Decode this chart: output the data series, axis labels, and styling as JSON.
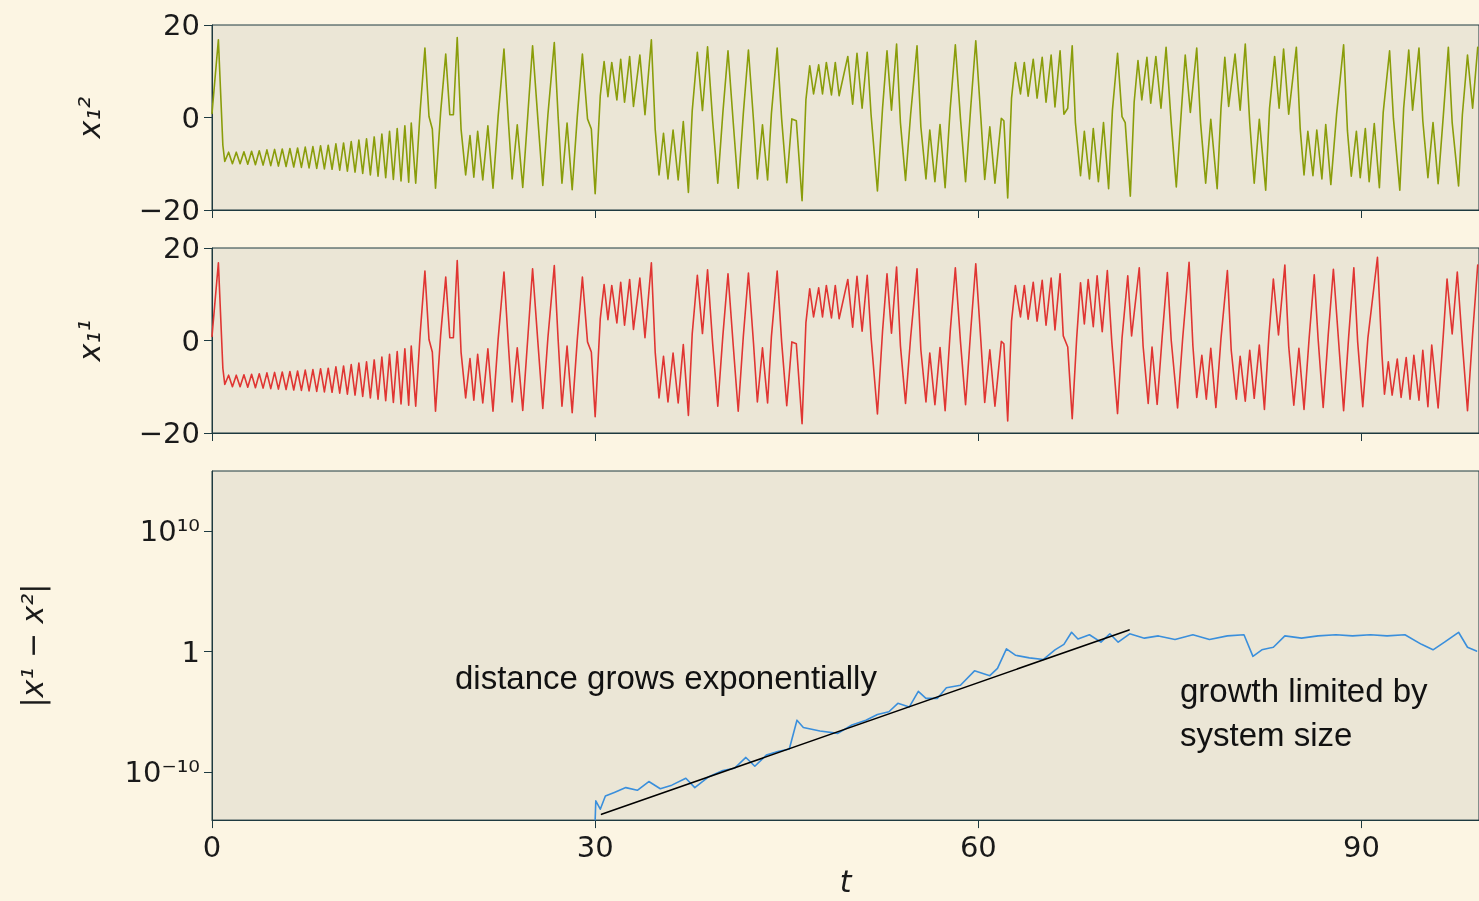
{
  "chart_data": [
    {
      "type": "line",
      "ylabel": "x₁²",
      "marker": "none",
      "tick_labels": "y",
      "xlim": [
        0,
        99.2
      ],
      "xticks": [
        0,
        30,
        60,
        90
      ],
      "ylim": [
        -20,
        20
      ],
      "yticks": [
        {
          "value": -20,
          "label": "−20"
        },
        0,
        20
      ],
      "series": [
        {
          "color": "#8a9d0a",
          "x": [
            0,
            0.5,
            0.85,
            1.0,
            1.3,
            1.6,
            1.9,
            2.2,
            2.5,
            2.8,
            3.1,
            3.4,
            3.7,
            4.0,
            4.3,
            4.6,
            4.9,
            5.2,
            5.5,
            5.8,
            6.1,
            6.4,
            6.7,
            7.0,
            7.3,
            7.6,
            7.9,
            8.2,
            8.5,
            8.8,
            9.1,
            9.4,
            9.7,
            10.0,
            10.3,
            10.6,
            10.9,
            11.2,
            11.5,
            11.8,
            12.1,
            12.4,
            12.7,
            13.0,
            13.3,
            13.6,
            13.9,
            14.2,
            14.5,
            14.8,
            15.1,
            15.4,
            15.6,
            15.95,
            16.3,
            16.67,
            16.99,
            17.25,
            17.5,
            17.9,
            18.3,
            18.62,
            18.9,
            19.2,
            19.5,
            19.86,
            20.2,
            20.5,
            20.8,
            21.2,
            21.6,
            22.0,
            22.4,
            22.86,
            23.2,
            23.5,
            23.9,
            24.33,
            24.75,
            25.1,
            25.5,
            25.9,
            26.3,
            26.8,
            27.1,
            27.4,
            27.8,
            28.2,
            28.6,
            29.0,
            29.4,
            29.7,
            30.0,
            30.4,
            30.7,
            31.0,
            31.3,
            31.7,
            32.0,
            32.3,
            32.7,
            33.0,
            33.5,
            33.9,
            34.4,
            34.7,
            35.0,
            35.35,
            35.7,
            36.1,
            36.5,
            36.9,
            37.3,
            37.6,
            38.0,
            38.4,
            38.8,
            39.2,
            39.6,
            40.0,
            40.4,
            40.8,
            41.2,
            41.6,
            42.0,
            42.4,
            42.7,
            43.1,
            43.5,
            43.8,
            44.25,
            44.6,
            45.0,
            45.4,
            45.75,
            46.2,
            46.5,
            46.8,
            47.1,
            47.5,
            47.8,
            48.1,
            48.5,
            48.8,
            49.1,
            49.78,
            50.16,
            50.5,
            50.9,
            51.3,
            51.6,
            52.1,
            52.5,
            52.85,
            53.2,
            53.6,
            53.9,
            54.3,
            54.7,
            55.2,
            55.5,
            55.9,
            56.2,
            56.6,
            57.0,
            57.4,
            57.8,
            58.2,
            58.6,
            59.0,
            59.4,
            59.8,
            60.2,
            60.5,
            60.9,
            61.3,
            61.8,
            62.0,
            62.3,
            62.6,
            62.9,
            63.3,
            63.6,
            63.9,
            64.3,
            64.6,
            65.0,
            65.3,
            65.7,
            66.0,
            66.4,
            66.7,
            67.0,
            67.35,
            67.6,
            68.0,
            68.3,
            68.7,
            69.0,
            69.4,
            69.8,
            70.2,
            70.5,
            70.9,
            71.25,
            71.5,
            71.9,
            72.2,
            72.5,
            72.8,
            73.2,
            73.5,
            73.9,
            74.3,
            74.7,
            75.1,
            75.5,
            75.9,
            76.2,
            76.6,
            77.1,
            77.4,
            77.8,
            78.2,
            78.7,
            79.0,
            79.3,
            79.6,
            80.1,
            80.5,
            80.9,
            81.25,
            81.6,
            82.0,
            82.5,
            82.8,
            83.2,
            83.55,
            83.9,
            84.3,
            84.9,
            85.2,
            85.5,
            85.8,
            86.2,
            86.5,
            86.9,
            87.2,
            87.6,
            88.05,
            88.6,
            88.9,
            89.2,
            89.6,
            89.9,
            90.3,
            90.6,
            91.0,
            91.4,
            91.7,
            92.2,
            92.5,
            93.0,
            93.3,
            93.7,
            94.0,
            94.5,
            94.8,
            95.2,
            95.6,
            96.0,
            96.4,
            96.8,
            97.1,
            97.6,
            97.9,
            98.3,
            98.7,
            99.1
          ],
          "values": [
            0.9,
            16.8,
            -6,
            -9.5,
            -7.5,
            -10,
            -7.5,
            -10,
            -7.4,
            -10.1,
            -7.3,
            -10.2,
            -7.2,
            -10.3,
            -7.0,
            -10.4,
            -6.9,
            -10.5,
            -6.8,
            -10.6,
            -6.7,
            -10.7,
            -6.6,
            -10.8,
            -6.4,
            -10.9,
            -6.3,
            -11.0,
            -6.1,
            -11.1,
            -6.0,
            -11.2,
            -5.7,
            -11.4,
            -5.5,
            -11.6,
            -5.2,
            -11.8,
            -4.9,
            -12.1,
            -4.6,
            -12.4,
            -4.2,
            -12.7,
            -3.6,
            -13.0,
            -3.0,
            -13.4,
            -2.4,
            -13.7,
            -1.8,
            -14.0,
            -1.2,
            -14.2,
            1.5,
            15.0,
            0.2,
            -2.5,
            -15.3,
            1.1,
            13.7,
            0.6,
            0.6,
            17.3,
            -2.5,
            -12.4,
            -3.9,
            -12.9,
            -3.0,
            -13.5,
            -1.8,
            -15.3,
            0.2,
            14.8,
            -0.7,
            -13.3,
            -1.6,
            -15.1,
            1.5,
            15.5,
            0.2,
            -14.7,
            0.6,
            16.2,
            0.2,
            -14.2,
            -1.2,
            -15.6,
            0.2,
            13.7,
            -0.3,
            -2.5,
            -16.5,
            4.7,
            12.1,
            4.5,
            11.9,
            3.8,
            12.6,
            3.3,
            13.2,
            2.4,
            13.5,
            0.6,
            16.8,
            -2.5,
            -12.4,
            -3.4,
            -13.3,
            -2.7,
            -13.5,
            -0.9,
            -16.2,
            1.5,
            14.1,
            1.5,
            15.3,
            -0.7,
            -14.2,
            1.1,
            14.4,
            -0.7,
            -15.3,
            0.9,
            14.6,
            -0.7,
            -13.3,
            -1.6,
            -13.5,
            0.9,
            15.0,
            -0.3,
            -14.1,
            -0.3,
            -0.7,
            -18.0,
            3.8,
            11.2,
            5.1,
            11.4,
            5.1,
            11.9,
            4.9,
            11.9,
            4.7,
            13.2,
            2.9,
            13.9,
            2.0,
            14.1,
            0.7,
            -15.9,
            2.0,
            14.4,
            1.6,
            15.9,
            -1.1,
            -13.6,
            0.7,
            15.5,
            -2.0,
            -13.3,
            -2.7,
            -13.9,
            -1.5,
            -15.2,
            2.0,
            15.7,
            -0.2,
            -13.9,
            2.0,
            16.6,
            -0.2,
            -13.4,
            -2.0,
            -14.2,
            -0.2,
            -0.7,
            -17.4,
            4.2,
            11.9,
            5.1,
            11.9,
            4.6,
            12.6,
            4.2,
            13.0,
            3.3,
            13.5,
            2.3,
            14.4,
            0.7,
            2.0,
            15.5,
            -1.1,
            -12.6,
            -3.0,
            -13.3,
            -2.4,
            -13.9,
            -1.1,
            -15.4,
            1.6,
            13.9,
            0.2,
            -1.1,
            -17.0,
            3.3,
            12.3,
            3.8,
            13.0,
            3.1,
            13.2,
            2.0,
            15.2,
            -1.1,
            -15.0,
            1.6,
            13.5,
            1.1,
            15.0,
            -1.1,
            -14.2,
            -0.4,
            -15.4,
            2.0,
            13.0,
            2.4,
            13.7,
            1.6,
            15.9,
            -1.1,
            -14.2,
            -0.4,
            -15.7,
            2.0,
            13.2,
            2.0,
            14.8,
            0.7,
            15.2,
            -2.4,
            -12.4,
            -3.0,
            -12.6,
            -2.7,
            -13.3,
            -1.5,
            -14.5,
            0.7,
            15.7,
            -2.9,
            -12.7,
            -3.0,
            -13.0,
            -2.4,
            -13.9,
            -1.3,
            -15.2,
            1.1,
            14.4,
            -0.2,
            -15.7,
            2.0,
            14.6,
            1.6,
            15.0,
            -0.7,
            -13.0,
            -1.1,
            -14.3,
            0.2,
            15.2,
            -1.1,
            -14.8,
            0.7,
            13.5,
            2.0,
            15.2
          ]
        }
      ]
    },
    {
      "type": "line",
      "ylabel": "x₁¹",
      "marker": "none",
      "tick_labels": "y",
      "xlim": [
        0,
        99.2
      ],
      "xticks": [
        0,
        30,
        60,
        90
      ],
      "ylim": [
        -20,
        20
      ],
      "yticks": [
        {
          "value": -20,
          "label": "−20"
        },
        0,
        20
      ],
      "series": [
        {
          "color": "#e03532",
          "x": [
            0,
            0.5,
            0.85,
            1.0,
            1.3,
            1.6,
            1.9,
            2.2,
            2.5,
            2.8,
            3.1,
            3.4,
            3.7,
            4.0,
            4.3,
            4.6,
            4.9,
            5.2,
            5.5,
            5.8,
            6.1,
            6.4,
            6.7,
            7.0,
            7.3,
            7.6,
            7.9,
            8.2,
            8.5,
            8.8,
            9.1,
            9.4,
            9.7,
            10.0,
            10.3,
            10.6,
            10.9,
            11.2,
            11.5,
            11.8,
            12.1,
            12.4,
            12.7,
            13.0,
            13.3,
            13.6,
            13.9,
            14.2,
            14.5,
            14.8,
            15.1,
            15.4,
            15.6,
            15.95,
            16.3,
            16.67,
            16.99,
            17.25,
            17.5,
            17.9,
            18.3,
            18.62,
            18.9,
            19.2,
            19.5,
            19.86,
            20.2,
            20.5,
            20.8,
            21.2,
            21.6,
            22.0,
            22.4,
            22.86,
            23.2,
            23.5,
            23.9,
            24.33,
            24.75,
            25.1,
            25.5,
            25.9,
            26.3,
            26.8,
            27.1,
            27.4,
            27.8,
            28.2,
            28.6,
            29.0,
            29.4,
            29.7,
            30.0,
            30.4,
            30.7,
            31.0,
            31.3,
            31.7,
            32.0,
            32.3,
            32.7,
            33.0,
            33.5,
            33.9,
            34.4,
            34.7,
            35.0,
            35.35,
            35.7,
            36.1,
            36.5,
            36.9,
            37.3,
            37.6,
            38.0,
            38.4,
            38.8,
            39.2,
            39.6,
            40.0,
            40.4,
            40.8,
            41.2,
            41.6,
            42.0,
            42.4,
            42.7,
            43.1,
            43.5,
            43.8,
            44.25,
            44.6,
            45.0,
            45.4,
            45.75,
            46.2,
            46.5,
            46.8,
            47.1,
            47.5,
            47.8,
            48.1,
            48.5,
            48.8,
            49.1,
            49.78,
            50.16,
            50.5,
            50.9,
            51.3,
            51.6,
            52.1,
            52.5,
            52.85,
            53.2,
            53.6,
            53.9,
            54.3,
            54.7,
            55.2,
            55.5,
            55.9,
            56.2,
            56.6,
            57.0,
            57.4,
            57.8,
            58.2,
            58.6,
            59.0,
            59.4,
            59.8,
            60.2,
            60.5,
            60.9,
            61.3,
            61.8,
            62.0,
            62.3,
            62.6,
            62.9,
            63.3,
            63.6,
            63.9,
            64.3,
            64.6,
            65.0,
            65.3,
            65.7,
            66.0,
            66.4,
            66.65,
            67.0,
            67.35,
            67.7,
            68.0,
            68.3,
            68.6,
            69.0,
            69.3,
            69.7,
            70.1,
            70.45,
            70.9,
            71.25,
            71.7,
            72.0,
            72.6,
            72.9,
            73.3,
            73.6,
            74.0,
            74.4,
            74.8,
            75.1,
            75.6,
            76.0,
            76.5,
            76.8,
            77.1,
            77.5,
            77.85,
            78.2,
            78.6,
            79.0,
            79.5,
            79.8,
            80.2,
            80.5,
            80.9,
            81.25,
            81.6,
            82.0,
            82.4,
            82.75,
            83.1,
            83.5,
            84.0,
            84.3,
            84.7,
            85.1,
            85.5,
            85.9,
            86.3,
            86.6,
            87.0,
            87.4,
            87.8,
            88.2,
            88.6,
            89.0,
            89.4,
            89.7,
            90.1,
            90.5,
            91.25,
            91.6,
            91.8,
            92.1,
            92.4,
            92.8,
            93.1,
            93.5,
            93.8,
            94.1,
            94.5,
            94.8,
            95.2,
            95.5,
            96.0,
            96.4,
            96.7,
            97.1,
            97.5,
            97.9,
            98.3,
            98.7,
            99.1
          ],
          "values": [
            0.9,
            16.8,
            -6,
            -9.5,
            -7.5,
            -10,
            -7.5,
            -10,
            -7.4,
            -10.1,
            -7.3,
            -10.2,
            -7.2,
            -10.3,
            -7.0,
            -10.4,
            -6.9,
            -10.5,
            -6.8,
            -10.6,
            -6.7,
            -10.7,
            -6.6,
            -10.8,
            -6.4,
            -10.9,
            -6.3,
            -11.0,
            -6.1,
            -11.1,
            -6.0,
            -11.2,
            -5.7,
            -11.4,
            -5.5,
            -11.6,
            -5.2,
            -11.8,
            -4.9,
            -12.1,
            -4.6,
            -12.4,
            -4.2,
            -12.7,
            -3.6,
            -13.0,
            -3.0,
            -13.4,
            -2.4,
            -13.7,
            -1.8,
            -14.0,
            -1.2,
            -14.2,
            1.5,
            15.0,
            0.2,
            -2.5,
            -15.3,
            1.1,
            13.7,
            0.6,
            0.6,
            17.3,
            -2.5,
            -12.4,
            -3.9,
            -12.9,
            -3.0,
            -13.5,
            -1.8,
            -15.3,
            0.2,
            14.8,
            -0.7,
            -13.3,
            -1.6,
            -15.1,
            1.5,
            15.5,
            0.2,
            -14.7,
            0.6,
            16.2,
            0.2,
            -14.2,
            -1.2,
            -15.6,
            0.2,
            13.7,
            -0.3,
            -2.5,
            -16.5,
            4.7,
            12.1,
            4.5,
            11.9,
            3.8,
            12.6,
            3.3,
            13.2,
            2.4,
            13.5,
            0.6,
            16.8,
            -2.5,
            -12.4,
            -3.4,
            -13.3,
            -2.7,
            -13.5,
            -0.9,
            -16.2,
            1.5,
            14.1,
            1.5,
            15.3,
            -0.7,
            -14.2,
            1.1,
            14.4,
            -0.7,
            -15.3,
            0.9,
            14.6,
            -0.7,
            -13.3,
            -1.6,
            -13.5,
            0.9,
            15.0,
            -0.3,
            -14.1,
            -0.3,
            -0.7,
            -18.0,
            3.8,
            11.2,
            5.1,
            11.4,
            5.1,
            11.9,
            4.9,
            11.9,
            4.7,
            13.2,
            2.9,
            13.9,
            2.0,
            14.1,
            0.7,
            -15.9,
            2.0,
            14.4,
            1.6,
            15.9,
            -1.1,
            -13.6,
            0.7,
            15.5,
            -2.0,
            -13.3,
            -2.7,
            -13.9,
            -1.5,
            -15.2,
            2.0,
            15.7,
            -0.2,
            -13.9,
            2.0,
            16.6,
            -0.2,
            -13.4,
            -2.0,
            -14.2,
            -0.2,
            -0.7,
            -17.4,
            4.2,
            11.9,
            5.1,
            11.9,
            4.6,
            12.6,
            4.2,
            13.0,
            3.3,
            13.5,
            2.3,
            14.4,
            1.0,
            -1.4,
            -16.9,
            0.5,
            12.5,
            3.6,
            13.2,
            3.0,
            14.0,
            1.9,
            15.1,
            -0.3,
            -15.8,
            0.5,
            14.0,
            1.0,
            15.7,
            -1.2,
            -13.6,
            -1.4,
            -13.8,
            1.0,
            14.7,
            0.1,
            -14.6,
            0.5,
            16.9,
            -1.2,
            -12.3,
            -3.2,
            -12.7,
            -1.7,
            -14.5,
            0.5,
            15.1,
            -2.1,
            -12.7,
            -3.4,
            -13.1,
            -2.1,
            -12.5,
            -1.0,
            -14.9,
            1.0,
            13.3,
            1.2,
            16.3,
            -1.2,
            -14.0,
            -1.7,
            -14.9,
            0.5,
            14.2,
            0.5,
            -14.5,
            1.4,
            15.4,
            0.1,
            -15.2,
            1.0,
            15.7,
            -0.3,
            -14.3,
            0.5,
            18.0,
            -3.0,
            -11.6,
            -4.6,
            -11.8,
            -4.0,
            -12.3,
            -3.7,
            -12.7,
            -3.2,
            -12.9,
            -2.1,
            -14.3,
            -1.0,
            -14.6,
            1.0,
            13.3,
            1.4,
            14.8,
            -0.8,
            -15.2,
            1.4,
            16.3
          ]
        }
      ]
    },
    {
      "type": "line",
      "xlabel": "t",
      "ylabel": "|x¹ − x²|",
      "log": true,
      "marker": "none",
      "xlim": [
        0,
        99.2
      ],
      "xticks": [
        0,
        30,
        60,
        90
      ],
      "ylim": [
        1e-14,
        1000000000000000.0
      ],
      "yticks": [
        {
          "value": 1e-10,
          "label": "10⁻¹⁰"
        },
        1,
        {
          "value": 10000000000.0,
          "label": "10¹⁰"
        }
      ],
      "annotations": [
        "distance grows exponentially",
        "growth limited by\nsystem size"
      ],
      "series": [
        {
          "color": "#3a8fdc",
          "x": [
            30.0,
            30.05,
            30.4,
            30.8,
            31.5,
            32.4,
            33.3,
            34.2,
            35.1,
            36.0,
            37.1,
            37.8,
            38.9,
            40.0,
            40.9,
            41.8,
            42.5,
            43.4,
            44.3,
            45.2,
            45.8,
            46.3,
            47.6,
            49.0,
            50.1,
            51.2,
            52.1,
            53.0,
            53.7,
            54.6,
            55.3,
            55.9,
            56.8,
            57.5,
            58.6,
            59.7,
            60.9,
            61.5,
            62.2,
            62.9,
            64.0,
            65.1,
            66.0,
            66.7,
            67.3,
            67.8,
            68.7,
            69.6,
            70.3,
            70.95,
            71.85,
            73.0,
            74.1,
            75.4,
            76.8,
            78.1,
            79.5,
            80.8,
            81.5,
            82.2,
            83.1,
            84.0,
            85.3,
            86.6,
            88.0,
            89.3,
            90.7,
            92.0,
            93.4,
            94.7,
            95.6,
            96.5,
            97.6,
            98.3,
            99.0
          ],
          "values": [
            1.1e-14,
            4e-13,
            8e-14,
            1e-12,
            2e-12,
            5e-12,
            3e-12,
            1.6e-11,
            4e-12,
            8e-12,
            3e-11,
            5e-12,
            4e-11,
            1.3e-10,
            2e-10,
            1.6e-09,
            3e-10,
            2.5e-09,
            5e-09,
            8e-09,
            2e-06,
            5e-07,
            2.5e-07,
            1.6e-07,
            8e-07,
            2e-06,
            6e-06,
            1e-05,
            5e-05,
            2.5e-05,
            0.0005,
            0.00013,
            0.00013,
            0.001,
            0.0016,
            0.025,
            0.01,
            0.04,
            1.7,
            0.5,
            0.3,
            0.22,
            1.4,
            4,
            40,
            11,
            25,
            6,
            30,
            6,
            30,
            13,
            20,
            10,
            25,
            10,
            20,
            25,
            0.4,
            1.4,
            2.3,
            20,
            13,
            20,
            25,
            20,
            25,
            20,
            25,
            4,
            1.4,
            6,
            40,
            2.3,
            1.1
          ]
        },
        {
          "type": "line",
          "color": "#000000",
          "x": [
            30.5,
            71.8
          ],
          "values": [
            3e-14,
            63
          ]
        }
      ]
    }
  ]
}
